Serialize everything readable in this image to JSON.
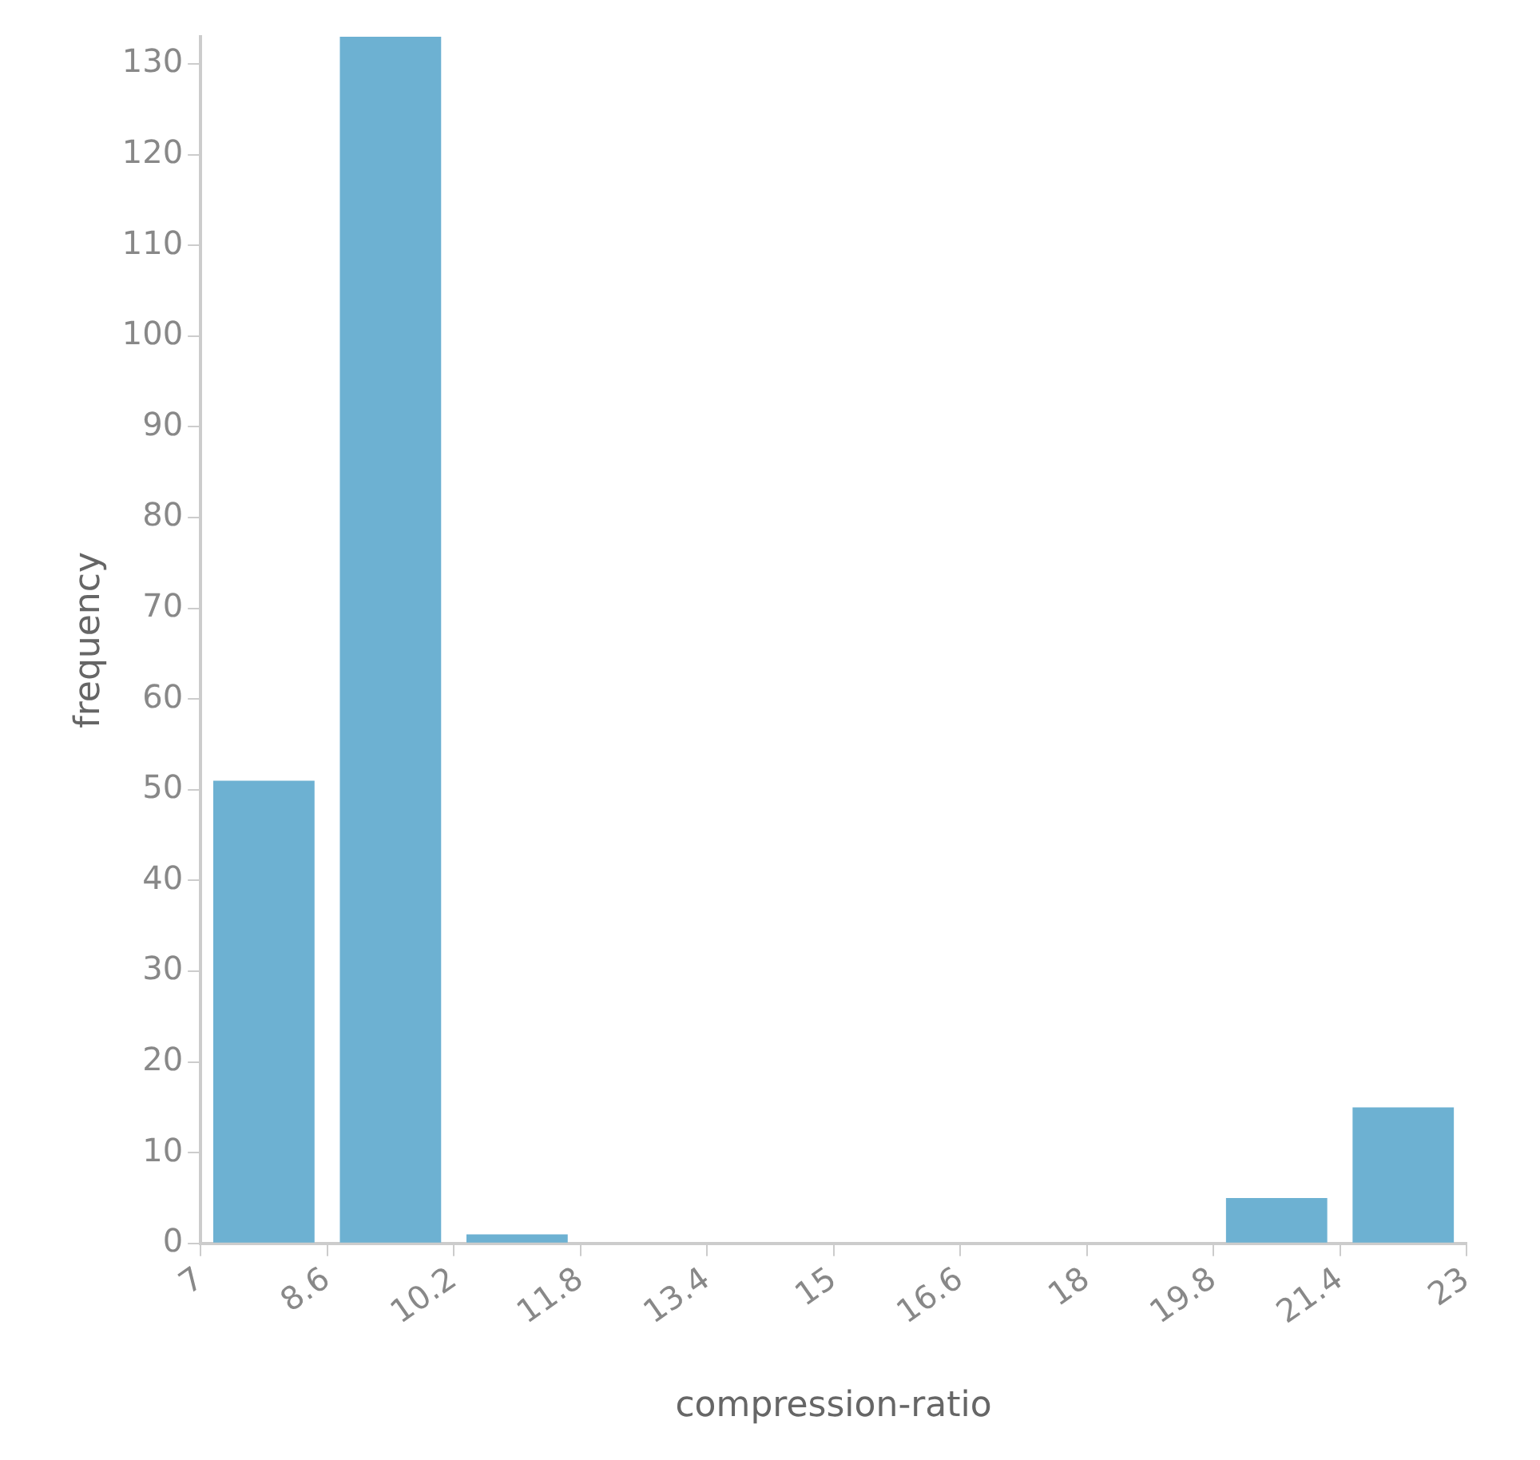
{
  "chart_data": {
    "type": "histogram",
    "xlabel": "compression-ratio",
    "ylabel": "frequency",
    "bins": [
      7,
      8.6,
      10.2,
      11.8,
      13.4,
      15,
      16.6,
      18.2,
      19.8,
      21.4,
      23
    ],
    "values": [
      51,
      133,
      1,
      0,
      0,
      0,
      0,
      0,
      5,
      15
    ],
    "color": "#6db1d2",
    "xlim": [
      7,
      23
    ],
    "xticks": [
      7,
      8.6,
      10.2,
      11.8,
      13.4,
      15,
      16.6,
      {
        "value": 18.2,
        "label": "18"
      },
      19.8,
      21.4,
      23
    ],
    "ylim": [
      0,
      133
    ],
    "yticks": [
      0,
      10,
      20,
      30,
      40,
      50,
      60,
      70,
      80,
      90,
      100,
      110,
      120,
      130
    ],
    "grid": false,
    "legend": false
  }
}
